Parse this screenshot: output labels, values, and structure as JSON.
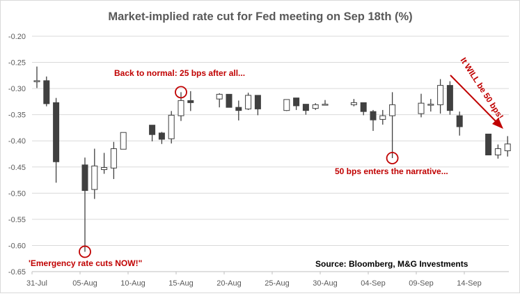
{
  "chart_data": {
    "type": "candlestick",
    "title": "Market-implied rate cut for Fed meeting on Sep 18th (%)",
    "xlabel": "",
    "ylabel": "",
    "ylim": [
      -0.65,
      -0.2
    ],
    "yticks": [
      "-0.20",
      "-0.25",
      "-0.30",
      "-0.35",
      "-0.40",
      "-0.45",
      "-0.50",
      "-0.55",
      "-0.60",
      "-0.65"
    ],
    "xticks": [
      "31-Jul",
      "05-Aug",
      "10-Aug",
      "15-Aug",
      "20-Aug",
      "25-Aug",
      "30-Aug",
      "04-Sep",
      "09-Sep",
      "14-Sep"
    ],
    "grid": true,
    "colors": {
      "down": "#404040",
      "up": "#ffffff",
      "outline": "#404040",
      "annotation": "#c00000",
      "grid": "#d9d9d9"
    },
    "candles": [
      {
        "date": "31-Jul",
        "open": -0.286,
        "high": -0.258,
        "low": -0.299,
        "close": -0.285
      },
      {
        "date": "01-Aug",
        "open": -0.285,
        "high": -0.277,
        "low": -0.334,
        "close": -0.329
      },
      {
        "date": "02-Aug",
        "open": -0.327,
        "high": -0.318,
        "low": -0.48,
        "close": -0.44
      },
      {
        "date": "05-Aug",
        "open": -0.446,
        "high": -0.432,
        "low": -0.612,
        "close": -0.495
      },
      {
        "date": "06-Aug",
        "open": -0.493,
        "high": -0.415,
        "low": -0.511,
        "close": -0.448
      },
      {
        "date": "07-Aug",
        "open": -0.455,
        "high": -0.423,
        "low": -0.463,
        "close": -0.451
      },
      {
        "date": "08-Aug",
        "open": -0.452,
        "high": -0.402,
        "low": -0.473,
        "close": -0.415
      },
      {
        "date": "09-Aug",
        "open": -0.416,
        "high": -0.384,
        "low": -0.416,
        "close": -0.384
      },
      {
        "date": "12-Aug",
        "open": -0.37,
        "high": -0.37,
        "low": -0.401,
        "close": -0.388
      },
      {
        "date": "13-Aug",
        "open": -0.385,
        "high": -0.383,
        "low": -0.406,
        "close": -0.397
      },
      {
        "date": "14-Aug",
        "open": -0.396,
        "high": -0.343,
        "low": -0.405,
        "close": -0.351
      },
      {
        "date": "15-Aug",
        "open": -0.352,
        "high": -0.307,
        "low": -0.362,
        "close": -0.323
      },
      {
        "date": "16-Aug",
        "open": -0.323,
        "high": -0.305,
        "low": -0.343,
        "close": -0.327
      },
      {
        "date": "19-Aug",
        "open": -0.32,
        "high": -0.309,
        "low": -0.336,
        "close": -0.311
      },
      {
        "date": "20-Aug",
        "open": -0.311,
        "high": -0.311,
        "low": -0.336,
        "close": -0.336
      },
      {
        "date": "21-Aug",
        "open": -0.336,
        "high": -0.323,
        "low": -0.361,
        "close": -0.342
      },
      {
        "date": "22-Aug",
        "open": -0.339,
        "high": -0.308,
        "low": -0.341,
        "close": -0.313
      },
      {
        "date": "23-Aug",
        "open": -0.313,
        "high": -0.313,
        "low": -0.351,
        "close": -0.339
      },
      {
        "date": "26-Aug",
        "open": -0.342,
        "high": -0.321,
        "low": -0.343,
        "close": -0.321
      },
      {
        "date": "27-Aug",
        "open": -0.318,
        "high": -0.318,
        "low": -0.341,
        "close": -0.333
      },
      {
        "date": "28-Aug",
        "open": -0.33,
        "high": -0.33,
        "low": -0.35,
        "close": -0.342
      },
      {
        "date": "29-Aug",
        "open": -0.338,
        "high": -0.328,
        "low": -0.341,
        "close": -0.331
      },
      {
        "date": "30-Aug",
        "open": -0.331,
        "high": -0.322,
        "low": -0.332,
        "close": -0.33
      },
      {
        "date": "02-Sep",
        "open": -0.331,
        "high": -0.32,
        "low": -0.334,
        "close": -0.327
      },
      {
        "date": "03-Sep",
        "open": -0.327,
        "high": -0.327,
        "low": -0.351,
        "close": -0.344
      },
      {
        "date": "04-Sep",
        "open": -0.344,
        "high": -0.341,
        "low": -0.381,
        "close": -0.36
      },
      {
        "date": "05-Sep",
        "open": -0.359,
        "high": -0.341,
        "low": -0.369,
        "close": -0.352
      },
      {
        "date": "06-Sep",
        "open": -0.352,
        "high": -0.307,
        "low": -0.433,
        "close": -0.331
      },
      {
        "date": "09-Sep",
        "open": -0.348,
        "high": -0.31,
        "low": -0.355,
        "close": -0.328
      },
      {
        "date": "10-Sep",
        "open": -0.332,
        "high": -0.32,
        "low": -0.344,
        "close": -0.33
      },
      {
        "date": "11-Sep",
        "open": -0.331,
        "high": -0.282,
        "low": -0.348,
        "close": -0.294
      },
      {
        "date": "12-Sep",
        "open": -0.294,
        "high": -0.286,
        "low": -0.35,
        "close": -0.342
      },
      {
        "date": "13-Sep",
        "open": -0.352,
        "high": -0.344,
        "low": -0.39,
        "close": -0.373
      },
      {
        "date": "16-Sep",
        "open": -0.387,
        "high": -0.387,
        "low": -0.427,
        "close": -0.427
      },
      {
        "date": "17-Sep",
        "open": -0.427,
        "high": -0.407,
        "low": -0.434,
        "close": -0.415
      },
      {
        "date": "18-Sep",
        "open": -0.419,
        "high": -0.391,
        "low": -0.43,
        "close": -0.406
      }
    ],
    "annotations": [
      {
        "text": "'Emergency rate cuts NOW!\"",
        "circle_date": "05-Aug",
        "circle_value": -0.612
      },
      {
        "text": "Back to normal: 25 bps after all...",
        "circle_date": "15-Aug",
        "circle_value": -0.307
      },
      {
        "text": "50 bps enters the narrative...",
        "circle_date": "06-Sep",
        "circle_value": -0.433
      },
      {
        "text": "It WILL be 50 bps!"
      }
    ],
    "source": "Source: Bloomberg, M&G Investments"
  }
}
